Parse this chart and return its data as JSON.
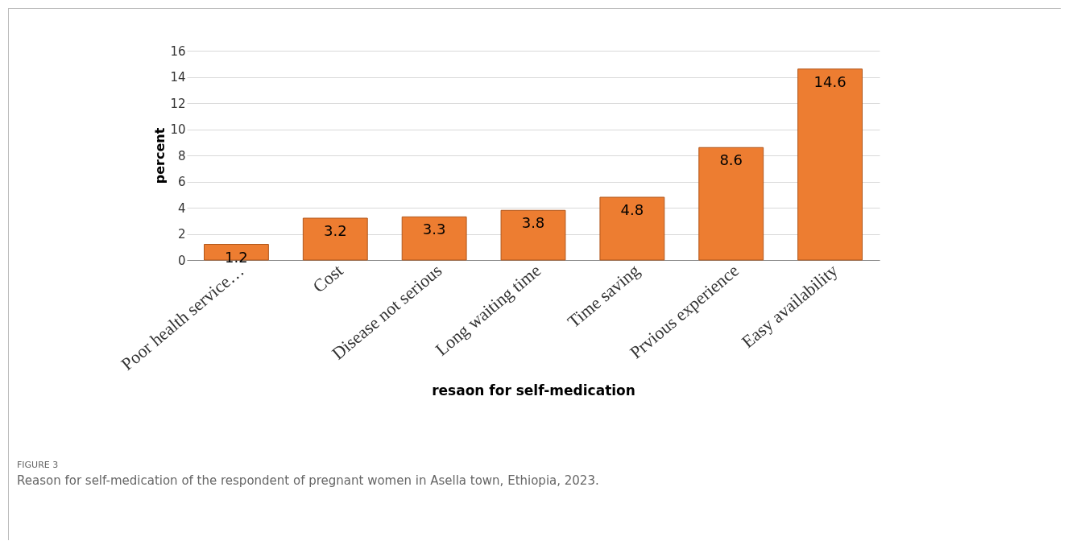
{
  "chart_data": {
    "type": "bar",
    "xlabel": "resaon for self-medication",
    "ylabel": "percent",
    "categories": [
      "Poor health service…",
      "Cost",
      "Disease not serious",
      "Long waiting time",
      "Time saving",
      "Prvious experience",
      "Easy availability"
    ],
    "values": [
      1.2,
      3.2,
      3.3,
      3.8,
      4.8,
      8.6,
      14.6
    ],
    "color": "#ed7d31",
    "ylim": [
      0,
      16
    ],
    "yticks": [
      0,
      2,
      4,
      6,
      8,
      10,
      12,
      14,
      16
    ],
    "grid": "y",
    "data_labels": true,
    "annotations": [
      "FIGURE 3",
      "Reason for self-medication of the respondent of pregnant women in Asella town, Ethiopia, 2023."
    ]
  }
}
